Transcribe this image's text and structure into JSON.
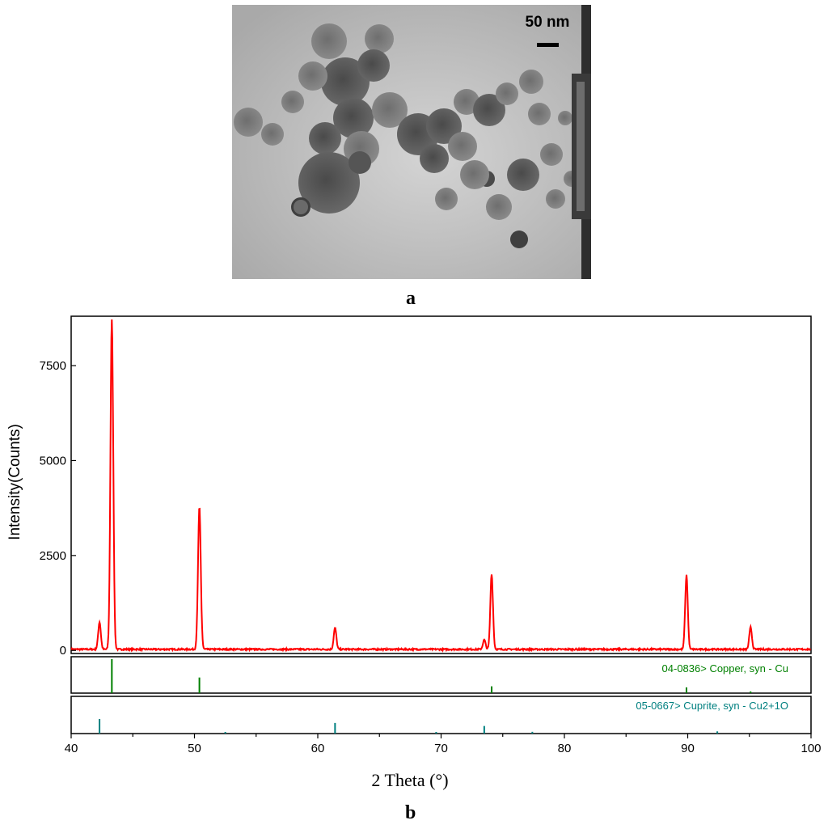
{
  "panel_a": {
    "label": "a",
    "scale_bar_text": "50 nm",
    "image_kind": "TEM micrograph of aggregated nanoparticles"
  },
  "panel_b": {
    "label": "b"
  },
  "colors": {
    "pattern": "#ff0000",
    "copper_ref": "#008000",
    "cuprite_ref": "#008080"
  },
  "chart_data": {
    "type": "line",
    "xlabel": "2 Theta (°)",
    "ylabel": "Intensity(Counts)",
    "xlim": [
      40,
      100
    ],
    "ylim": [
      -80,
      8800
    ],
    "x_ticks": [
      "40",
      "50",
      "60",
      "70",
      "80",
      "90",
      "100"
    ],
    "y_ticks": [
      "0",
      "2500",
      "5000",
      "7500"
    ],
    "grid": false,
    "series": [
      {
        "peaks": [
          {
            "x": 42.3,
            "y": 720
          },
          {
            "x": 43.3,
            "y": 8700
          },
          {
            "x": 50.4,
            "y": 3740
          },
          {
            "x": 61.4,
            "y": 560
          },
          {
            "x": 73.5,
            "y": 250
          },
          {
            "x": 74.1,
            "y": 1990
          },
          {
            "x": 89.9,
            "y": 1950
          },
          {
            "x": 95.1,
            "y": 580
          }
        ],
        "baseline": 30
      }
    ],
    "reference_patterns": [
      {
        "label": "04-0836> Copper, syn - Cu",
        "lines": [
          {
            "x": 43.3,
            "rel": 100
          },
          {
            "x": 50.4,
            "rel": 46
          },
          {
            "x": 74.1,
            "rel": 20
          },
          {
            "x": 89.9,
            "rel": 17
          },
          {
            "x": 95.1,
            "rel": 5
          }
        ]
      },
      {
        "label": "05-0667> Cuprite, syn - Cu2+1O",
        "lines": [
          {
            "x": 42.3,
            "rel": 100
          },
          {
            "x": 52.5,
            "rel": 9
          },
          {
            "x": 61.4,
            "rel": 73
          },
          {
            "x": 69.6,
            "rel": 4
          },
          {
            "x": 73.5,
            "rel": 52
          },
          {
            "x": 77.4,
            "rel": 12
          },
          {
            "x": 92.4,
            "rel": 15
          }
        ]
      }
    ]
  }
}
